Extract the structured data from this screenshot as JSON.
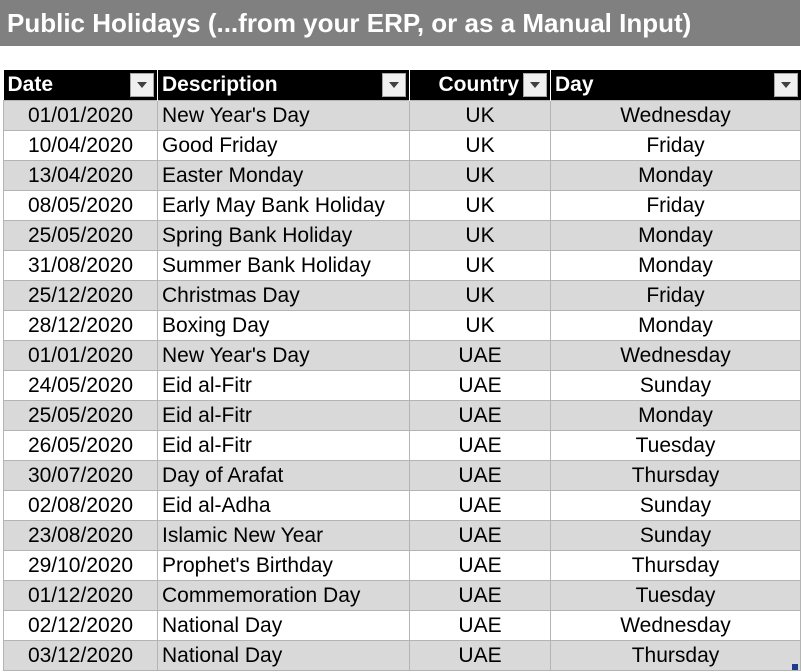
{
  "title": "Public Holidays (...from your ERP, or as a Manual Input)",
  "table": {
    "headers": {
      "date": "Date",
      "description": "Description",
      "country": "Country",
      "day": "Day"
    },
    "rows": [
      {
        "date": "01/01/2020",
        "description": "New Year's Day",
        "country": "UK",
        "day": "Wednesday"
      },
      {
        "date": "10/04/2020",
        "description": "Good Friday",
        "country": "UK",
        "day": "Friday"
      },
      {
        "date": "13/04/2020",
        "description": "Easter Monday",
        "country": "UK",
        "day": "Monday"
      },
      {
        "date": "08/05/2020",
        "description": "Early May Bank Holiday",
        "country": "UK",
        "day": "Friday"
      },
      {
        "date": "25/05/2020",
        "description": "Spring Bank Holiday",
        "country": "UK",
        "day": "Monday"
      },
      {
        "date": "31/08/2020",
        "description": "Summer Bank Holiday",
        "country": "UK",
        "day": "Monday"
      },
      {
        "date": "25/12/2020",
        "description": "Christmas Day",
        "country": "UK",
        "day": "Friday"
      },
      {
        "date": "28/12/2020",
        "description": "Boxing Day",
        "country": "UK",
        "day": "Monday"
      },
      {
        "date": "01/01/2020",
        "description": "New Year's Day",
        "country": "UAE",
        "day": "Wednesday"
      },
      {
        "date": "24/05/2020",
        "description": "Eid al-Fitr",
        "country": "UAE",
        "day": "Sunday"
      },
      {
        "date": "25/05/2020",
        "description": "Eid al-Fitr",
        "country": "UAE",
        "day": "Monday"
      },
      {
        "date": "26/05/2020",
        "description": "Eid al-Fitr",
        "country": "UAE",
        "day": "Tuesday"
      },
      {
        "date": "30/07/2020",
        "description": "Day of Arafat",
        "country": "UAE",
        "day": "Thursday"
      },
      {
        "date": "02/08/2020",
        "description": "Eid al-Adha",
        "country": "UAE",
        "day": "Sunday"
      },
      {
        "date": "23/08/2020",
        "description": "Islamic New Year",
        "country": "UAE",
        "day": "Sunday"
      },
      {
        "date": "29/10/2020",
        "description": "Prophet's Birthday",
        "country": "UAE",
        "day": "Thursday"
      },
      {
        "date": "01/12/2020",
        "description": "Commemoration Day",
        "country": "UAE",
        "day": "Tuesday"
      },
      {
        "date": "02/12/2020",
        "description": "National Day",
        "country": "UAE",
        "day": "Wednesday"
      },
      {
        "date": "03/12/2020",
        "description": "National Day",
        "country": "UAE",
        "day": "Thursday"
      }
    ]
  },
  "icons": {
    "filter": "filter-dropdown-icon",
    "resize": "table-resize-handle-icon"
  },
  "colors": {
    "title_bg": "#808080",
    "header_bg": "#000000",
    "band_row": "#d9d9d9"
  }
}
